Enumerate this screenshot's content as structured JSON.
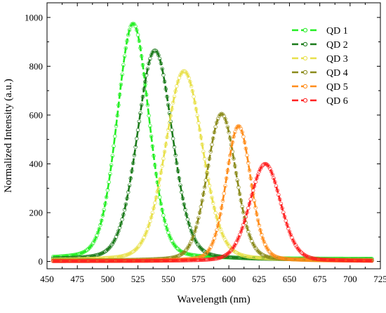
{
  "chart_data": {
    "type": "line",
    "title": "",
    "xlabel": "Wavelength (nm)",
    "ylabel": "Normalized Intensity (a.u.)",
    "xlim": [
      450,
      725
    ],
    "ylim": [
      -30,
      1060
    ],
    "x_ticks": [
      450,
      475,
      500,
      525,
      550,
      575,
      600,
      625,
      650,
      675,
      700,
      725
    ],
    "y_ticks": [
      0,
      200,
      400,
      600,
      800,
      1000
    ],
    "grid": false,
    "legend_position": "top-right",
    "x_range_measured": [
      455,
      718
    ],
    "series": [
      {
        "name": "QD 1",
        "color": "#22ee22",
        "peak_wavelength": 521,
        "peak_intensity": 975,
        "fwhm": 31,
        "baseline": 10
      },
      {
        "name": "QD 2",
        "color": "#1a7a1a",
        "peak_wavelength": 539,
        "peak_intensity": 865,
        "fwhm": 34,
        "baseline": 6
      },
      {
        "name": "QD 3",
        "color": "#e8e04a",
        "peak_wavelength": 563,
        "peak_intensity": 780,
        "fwhm": 36,
        "baseline": 4
      },
      {
        "name": "QD 4",
        "color": "#8a8a1a",
        "peak_wavelength": 594,
        "peak_intensity": 605,
        "fwhm": 28,
        "baseline": 3
      },
      {
        "name": "QD 5",
        "color": "#ff8c1a",
        "peak_wavelength": 608,
        "peak_intensity": 555,
        "fwhm": 24,
        "baseline": 2
      },
      {
        "name": "QD 6",
        "color": "#ff2020",
        "peak_wavelength": 630,
        "peak_intensity": 400,
        "fwhm": 30,
        "baseline": 1
      }
    ]
  }
}
